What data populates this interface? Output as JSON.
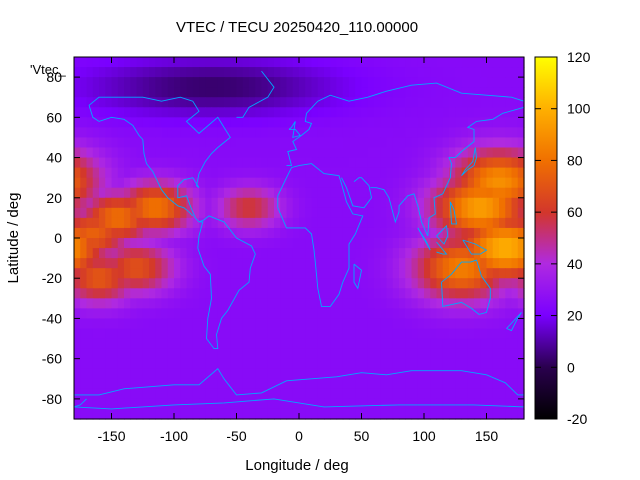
{
  "chart_data": {
    "type": "heatmap",
    "title": "VTEC / TECU 20250420_110.00000",
    "xlabel": "Longitude / deg",
    "ylabel": "Latitude / deg",
    "key_label": "'Vtec_",
    "xlim": [
      -180,
      180
    ],
    "ylim": [
      -90,
      90
    ],
    "xticks": [
      -150,
      -100,
      -50,
      0,
      50,
      100,
      150
    ],
    "yticks": [
      -80,
      -60,
      -40,
      -20,
      0,
      20,
      40,
      60,
      80
    ],
    "colorbar": {
      "min": -20,
      "max": 120,
      "ticks": [
        120,
        100,
        80,
        60,
        40,
        20,
        0,
        -20
      ]
    },
    "grid_resolution_deg": 5,
    "features": [
      {
        "type": "crest",
        "lon": -115,
        "lat": 15,
        "width_deg": 7,
        "value": 82
      },
      {
        "type": "crest",
        "lon": -145,
        "lat": 10,
        "width_deg": 7,
        "value": 80
      },
      {
        "type": "crest",
        "lon": -165,
        "lat": 2,
        "width_deg": 7,
        "value": 75
      },
      {
        "type": "crest",
        "lon": -160,
        "lat": -20,
        "width_deg": 7,
        "value": 72
      },
      {
        "type": "crest",
        "lon": -130,
        "lat": -15,
        "width_deg": 7,
        "value": 70
      },
      {
        "type": "crest",
        "lon": 145,
        "lat": 15,
        "width_deg": 9,
        "value": 95
      },
      {
        "type": "crest",
        "lon": 165,
        "lat": -5,
        "width_deg": 9,
        "value": 100
      },
      {
        "type": "crest",
        "lon": 160,
        "lat": 28,
        "width_deg": 9,
        "value": 90
      },
      {
        "type": "crest",
        "lon": 130,
        "lat": -15,
        "width_deg": 9,
        "value": 85
      },
      {
        "type": "crest",
        "lon": -40,
        "lat": 15,
        "width_deg": 6,
        "value": 60
      },
      {
        "type": "polar_low",
        "lon": -70,
        "lat": 75,
        "value": 3
      },
      {
        "type": "background_midlat",
        "value": 25
      },
      {
        "type": "background_high_south",
        "value": 18
      }
    ]
  },
  "page": {
    "background": "#ffffff",
    "coastline_color": "#00a8ff"
  }
}
